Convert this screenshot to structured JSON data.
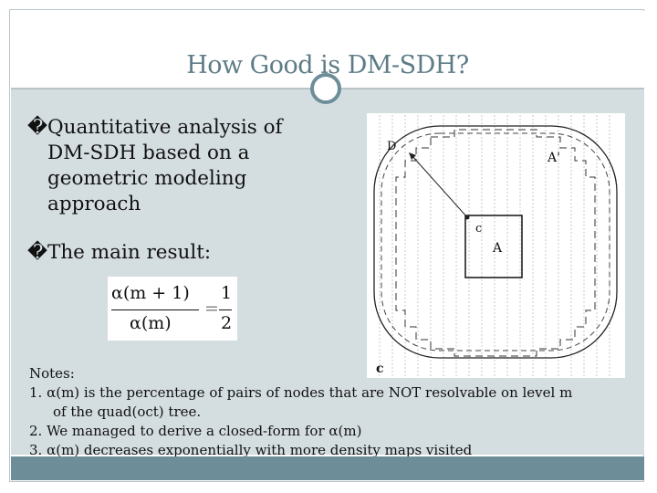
{
  "slide": {
    "title": "How Good is DM-SDH?"
  },
  "bullets": [
    {
      "mark": "�",
      "lines": [
        "Quantitative analysis of",
        "DM-SDH based on a",
        "geometric modeling",
        "approach"
      ]
    },
    {
      "mark": "�",
      "lines": [
        "The main result:"
      ]
    }
  ],
  "formula": {
    "numerator": "α(m + 1)",
    "denominator": "α(m)",
    "equals": "=",
    "rhs_numerator": "1",
    "rhs_denominator": "2"
  },
  "figure": {
    "label_d": "D",
    "label_a_prime": "A'",
    "label_c_small": "c",
    "label_a": "A",
    "label_c": "c"
  },
  "notes": {
    "heading": "Notes:",
    "items": [
      {
        "num": "1.",
        "text": "α(m) is the percentage of pairs of nodes that are NOT resolvable on level m",
        "cont": "of the quad(oct) tree."
      },
      {
        "num": "2.",
        "text": "We managed to derive a closed-form for α(m)"
      },
      {
        "num": "3.",
        "text": "α(m) decreases exponentially with more density maps visited"
      }
    ]
  },
  "colors": {
    "accent": "#6d8e98",
    "title_text": "#5e7c86",
    "content_bg": "#d4dde0"
  }
}
